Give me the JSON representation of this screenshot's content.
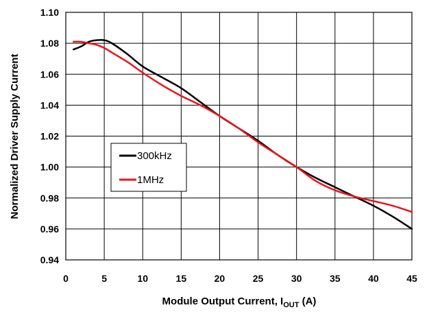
{
  "chart_data": {
    "type": "line",
    "title": "",
    "xlabel": "Module Output Current, I",
    "xlabel_sub": "OUT",
    "xlabel_unit": " (A)",
    "ylabel": "Normalized Driver Supply Current",
    "xlim": [
      0,
      45
    ],
    "ylim": [
      0.94,
      1.1
    ],
    "xticks": [
      0,
      5,
      10,
      15,
      20,
      25,
      30,
      35,
      40,
      45
    ],
    "yticks": [
      0.94,
      0.96,
      0.98,
      1.0,
      1.02,
      1.04,
      1.06,
      1.08,
      1.1
    ],
    "x_tick_labels": [
      "0",
      "5",
      "10",
      "15",
      "20",
      "25",
      "30",
      "35",
      "40",
      "45"
    ],
    "y_tick_labels": [
      "0.94",
      "0.96",
      "0.98",
      "1.00",
      "1.02",
      "1.04",
      "1.06",
      "1.08",
      "1.10"
    ],
    "grid": true,
    "legend_position": "center-left",
    "series": [
      {
        "name": "300kHz",
        "color": "#000000",
        "x": [
          1,
          2,
          3,
          4,
          5,
          6,
          8,
          10,
          12.5,
          15,
          17.5,
          20,
          22.5,
          25,
          27.5,
          30,
          32.5,
          35,
          37.5,
          40,
          42.5,
          45
        ],
        "y": [
          1.076,
          1.078,
          1.081,
          1.082,
          1.082,
          1.08,
          1.073,
          1.065,
          1.058,
          1.051,
          1.042,
          1.033,
          1.025,
          1.017,
          1.008,
          1.0,
          0.993,
          0.987,
          0.981,
          0.975,
          0.968,
          0.96
        ]
      },
      {
        "name": "1MHz",
        "color": "#e8151b",
        "x": [
          1,
          2,
          3,
          4,
          5,
          6,
          8,
          10,
          12.5,
          15,
          17.5,
          20,
          22.5,
          25,
          27.5,
          30,
          32.5,
          35,
          37.5,
          40,
          42.5,
          45
        ],
        "y": [
          1.081,
          1.081,
          1.08,
          1.079,
          1.077,
          1.074,
          1.068,
          1.061,
          1.053,
          1.046,
          1.04,
          1.033,
          1.025,
          1.016,
          1.008,
          1.0,
          0.991,
          0.985,
          0.981,
          0.978,
          0.975,
          0.971
        ]
      }
    ]
  }
}
